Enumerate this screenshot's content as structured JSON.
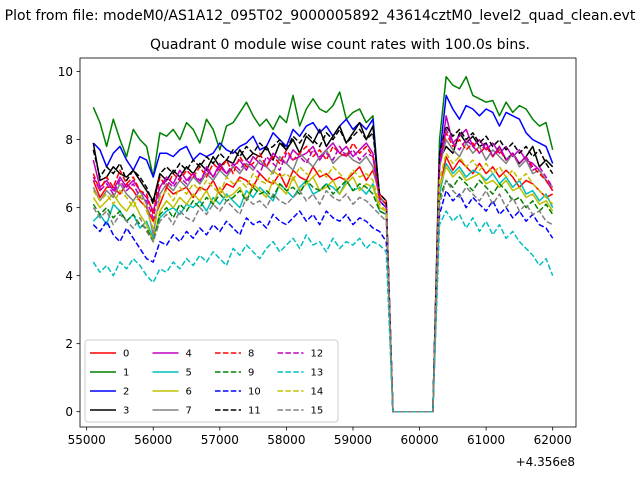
{
  "header": {
    "suptitle": "Plot from file: modeM0/AS1A12_095T02_9000005892_43614cztM0_level2_quad_clean.evt"
  },
  "chart_data": {
    "type": "line",
    "title": "Quadrant 0 module wise count rates with 100.0s bins.",
    "xlabel": "",
    "ylabel": "",
    "x_offset_label": "+4.356e8",
    "xlim": [
      54900,
      62350
    ],
    "ylim": [
      -0.45,
      10.4
    ],
    "xticks": [
      55000,
      56000,
      57000,
      58000,
      59000,
      60000,
      61000,
      62000
    ],
    "yticks": [
      0,
      2,
      4,
      6,
      8,
      10
    ],
    "grid": false,
    "legend": {
      "location": "lower-left",
      "columns": 4
    },
    "x_start": 55100,
    "x_step": 100,
    "series": [
      {
        "name": "0",
        "color": "#ff0000",
        "dash": "solid",
        "values": [
          6.8,
          6.3,
          6.6,
          6.6,
          6.4,
          6.7,
          6.5,
          6.2,
          6.0,
          5.6,
          6.1,
          6.6,
          6.4,
          6.5,
          6.6,
          6.3,
          6.6,
          6.5,
          6.8,
          6.4,
          6.7,
          6.6,
          6.9,
          6.8,
          6.6,
          7.0,
          6.8,
          6.7,
          7.0,
          6.6,
          7.1,
          6.9,
          6.8,
          7.2,
          6.9,
          7.0,
          6.8,
          6.9,
          6.8,
          7.0,
          7.2,
          6.8,
          7.1,
          6.4,
          6.2,
          0,
          0,
          0,
          0,
          0,
          0,
          0,
          6.5,
          7.5,
          7.1,
          7.4,
          7.2,
          7.0,
          7.3,
          7.0,
          7.2,
          6.9,
          7.1,
          6.9,
          6.6,
          6.8,
          6.7,
          6.5,
          6.3,
          6.4
        ]
      },
      {
        "name": "1",
        "color": "#008000",
        "dash": "solid",
        "values": [
          8.95,
          8.5,
          7.8,
          8.6,
          8.0,
          7.5,
          8.3,
          8.0,
          7.8,
          6.9,
          8.2,
          8.1,
          8.3,
          8.0,
          8.5,
          8.3,
          7.9,
          8.6,
          8.3,
          7.7,
          8.4,
          8.5,
          8.8,
          9.1,
          8.7,
          8.4,
          8.6,
          8.3,
          8.7,
          8.5,
          9.3,
          8.4,
          8.9,
          9.2,
          8.9,
          8.8,
          9.0,
          9.4,
          8.6,
          8.8,
          8.9,
          8.5,
          8.7,
          6.2,
          6.0,
          0,
          0,
          0,
          0,
          0,
          0,
          0,
          8.0,
          9.85,
          9.6,
          9.5,
          9.85,
          9.3,
          9.2,
          9.1,
          9.15,
          8.7,
          9.1,
          8.8,
          9.0,
          8.9,
          8.6,
          8.4,
          8.5,
          7.7
        ]
      },
      {
        "name": "2",
        "color": "#0000ff",
        "dash": "solid",
        "values": [
          7.9,
          7.7,
          7.2,
          7.6,
          7.8,
          7.4,
          7.1,
          7.5,
          7.4,
          6.9,
          7.6,
          7.6,
          7.5,
          7.7,
          7.8,
          7.4,
          7.6,
          7.5,
          7.6,
          7.9,
          7.7,
          7.6,
          7.8,
          7.9,
          8.1,
          7.7,
          7.8,
          8.2,
          8.0,
          7.8,
          8.3,
          8.1,
          8.4,
          8.5,
          8.2,
          8.4,
          8.1,
          8.4,
          8.6,
          8.3,
          8.5,
          8.3,
          8.6,
          6.2,
          6.0,
          0,
          0,
          0,
          0,
          0,
          0,
          0,
          7.5,
          9.3,
          8.9,
          8.6,
          9.0,
          8.9,
          8.7,
          8.9,
          8.8,
          8.4,
          8.8,
          8.7,
          8.6,
          8.2,
          8.0,
          7.9,
          7.8,
          7.3
        ]
      },
      {
        "name": "3",
        "color": "#000000",
        "dash": "solid",
        "values": [
          7.9,
          6.8,
          6.9,
          7.2,
          7.0,
          6.9,
          7.1,
          6.8,
          6.5,
          6.2,
          7.0,
          6.8,
          7.1,
          6.9,
          7.2,
          7.0,
          7.3,
          7.1,
          7.5,
          7.2,
          7.4,
          7.3,
          7.7,
          7.4,
          7.6,
          7.5,
          7.8,
          7.4,
          7.9,
          7.7,
          8.0,
          7.6,
          8.1,
          7.9,
          8.3,
          7.8,
          8.1,
          8.4,
          7.9,
          8.2,
          8.5,
          8.0,
          8.4,
          6.3,
          6.1,
          0,
          0,
          0,
          0,
          0,
          0,
          0,
          7.4,
          7.8,
          7.6,
          8.2,
          7.9,
          8.1,
          7.8,
          7.9,
          7.5,
          7.8,
          7.4,
          7.6,
          7.3,
          7.5,
          7.8,
          7.2,
          7.4,
          7.2
        ]
      },
      {
        "name": "4",
        "color": "#bf00bf",
        "dash": "solid",
        "values": [
          7.4,
          6.6,
          6.8,
          6.5,
          6.9,
          6.6,
          6.8,
          6.5,
          6.3,
          5.9,
          6.6,
          6.9,
          6.7,
          7.1,
          6.8,
          7.0,
          6.7,
          7.2,
          6.9,
          7.3,
          7.0,
          7.2,
          7.4,
          7.1,
          7.5,
          7.3,
          7.2,
          7.6,
          7.4,
          7.3,
          7.7,
          7.5,
          7.6,
          7.8,
          7.4,
          7.7,
          7.9,
          7.6,
          7.8,
          7.5,
          7.7,
          7.9,
          7.6,
          6.3,
          6.1,
          0,
          0,
          0,
          0,
          0,
          0,
          0,
          7.2,
          8.7,
          7.9,
          8.1,
          8.3,
          7.8,
          8.0,
          7.7,
          7.9,
          7.6,
          7.8,
          7.5,
          7.7,
          7.4,
          7.3,
          7.1,
          6.8,
          6.5
        ]
      },
      {
        "name": "5",
        "color": "#00bfbf",
        "dash": "solid",
        "values": [
          5.6,
          5.8,
          5.5,
          6.1,
          5.9,
          5.6,
          5.8,
          5.4,
          5.6,
          5.1,
          5.7,
          5.9,
          6.0,
          5.8,
          6.1,
          6.0,
          6.2,
          5.9,
          6.3,
          6.1,
          6.4,
          6.2,
          6.0,
          6.5,
          6.3,
          6.6,
          6.4,
          6.2,
          6.7,
          6.5,
          6.3,
          6.6,
          6.8,
          6.4,
          6.5,
          6.7,
          6.6,
          6.4,
          6.8,
          6.5,
          6.6,
          6.4,
          6.7,
          5.9,
          5.8,
          0,
          0,
          0,
          0,
          0,
          0,
          0,
          6.4,
          7.3,
          7.0,
          7.2,
          6.9,
          7.1,
          7.0,
          6.8,
          7.0,
          6.7,
          6.9,
          6.6,
          6.8,
          6.4,
          6.5,
          6.2,
          6.4,
          6.0
        ]
      },
      {
        "name": "6",
        "color": "#bfbf00",
        "dash": "solid",
        "values": [
          6.3,
          6.0,
          6.2,
          6.4,
          6.1,
          5.9,
          6.2,
          5.8,
          5.5,
          5.0,
          5.9,
          6.2,
          6.0,
          6.3,
          6.1,
          6.4,
          6.2,
          6.5,
          6.1,
          6.6,
          6.3,
          6.4,
          6.6,
          6.2,
          6.7,
          6.5,
          6.3,
          6.8,
          6.6,
          6.4,
          6.9,
          6.5,
          6.7,
          6.9,
          6.5,
          6.6,
          6.8,
          6.4,
          6.7,
          6.9,
          6.5,
          6.7,
          6.6,
          6.0,
          5.9,
          0,
          0,
          0,
          0,
          0,
          0,
          0,
          6.6,
          7.2,
          6.9,
          7.1,
          6.8,
          6.9,
          7.0,
          6.7,
          6.8,
          6.6,
          6.8,
          6.5,
          6.6,
          6.3,
          6.4,
          6.1,
          6.2,
          5.9
        ]
      },
      {
        "name": "7",
        "color": "#808080",
        "dash": "solid",
        "values": [
          6.6,
          6.2,
          6.5,
          6.3,
          6.7,
          6.4,
          6.2,
          6.5,
          6.1,
          5.2,
          6.4,
          6.7,
          6.5,
          6.8,
          6.6,
          6.9,
          6.7,
          7.0,
          6.8,
          7.1,
          6.9,
          7.2,
          7.0,
          7.3,
          7.1,
          7.4,
          7.2,
          7.0,
          7.5,
          7.3,
          7.1,
          7.6,
          7.4,
          7.2,
          7.5,
          7.7,
          7.3,
          7.5,
          7.6,
          7.4,
          7.3,
          7.5,
          7.2,
          6.3,
          6.1,
          0,
          0,
          0,
          0,
          0,
          0,
          0,
          7.2,
          8.0,
          7.7,
          7.5,
          7.9,
          7.6,
          7.8,
          7.4,
          7.7,
          7.5,
          7.3,
          7.6,
          7.2,
          7.4,
          7.0,
          7.1,
          6.8,
          6.6
        ]
      },
      {
        "name": "8",
        "color": "#ff0000",
        "dash": "dashed",
        "values": [
          7.0,
          6.5,
          6.9,
          6.6,
          7.1,
          6.7,
          6.9,
          6.5,
          6.4,
          5.8,
          6.9,
          6.6,
          7.0,
          6.8,
          7.1,
          6.9,
          7.2,
          6.9,
          7.3,
          7.1,
          7.4,
          7.0,
          7.5,
          7.2,
          7.3,
          7.6,
          7.2,
          7.5,
          7.3,
          7.7,
          7.4,
          7.6,
          7.8,
          7.5,
          7.7,
          7.4,
          7.8,
          7.6,
          7.5,
          7.9,
          7.6,
          7.8,
          7.5,
          6.3,
          6.1,
          0,
          0,
          0,
          0,
          0,
          0,
          0,
          7.3,
          8.2,
          7.8,
          8.0,
          7.7,
          7.9,
          7.6,
          7.8,
          7.5,
          7.7,
          7.4,
          7.6,
          7.3,
          7.5,
          7.2,
          7.0,
          6.8,
          6.5
        ]
      },
      {
        "name": "9",
        "color": "#008000",
        "dash": "dashed",
        "values": [
          6.1,
          5.8,
          6.0,
          5.7,
          5.9,
          5.6,
          5.8,
          5.5,
          5.4,
          5.0,
          5.8,
          6.0,
          5.7,
          6.1,
          5.9,
          6.2,
          6.0,
          6.3,
          6.1,
          6.4,
          6.2,
          6.3,
          6.5,
          6.2,
          6.6,
          6.4,
          6.5,
          6.3,
          6.7,
          6.5,
          6.6,
          6.4,
          6.8,
          6.6,
          6.5,
          6.7,
          6.4,
          6.6,
          6.8,
          6.5,
          6.7,
          6.6,
          6.4,
          5.9,
          5.8,
          0,
          0,
          0,
          0,
          0,
          0,
          0,
          6.3,
          6.8,
          6.6,
          6.9,
          6.7,
          6.5,
          6.8,
          6.6,
          6.4,
          6.7,
          6.5,
          6.2,
          6.3,
          6.0,
          6.2,
          5.9,
          6.1,
          5.8
        ]
      },
      {
        "name": "10",
        "color": "#0000ff",
        "dash": "dashed",
        "values": [
          5.5,
          5.3,
          5.6,
          5.2,
          5.0,
          5.4,
          5.1,
          4.8,
          4.5,
          4.4,
          5.0,
          4.9,
          5.2,
          5.0,
          5.3,
          5.1,
          5.4,
          5.2,
          5.5,
          5.3,
          5.6,
          5.4,
          5.2,
          5.7,
          5.5,
          5.6,
          5.4,
          5.8,
          5.6,
          5.5,
          5.7,
          5.9,
          5.6,
          5.8,
          5.5,
          5.9,
          5.7,
          5.6,
          5.8,
          5.5,
          5.7,
          5.6,
          5.4,
          5.3,
          5.0,
          0,
          0,
          0,
          0,
          0,
          0,
          0,
          5.8,
          6.5,
          6.2,
          6.4,
          6.0,
          6.3,
          6.1,
          5.9,
          6.2,
          5.8,
          6.0,
          5.7,
          5.9,
          5.6,
          5.8,
          5.5,
          5.4,
          5.1
        ]
      },
      {
        "name": "11",
        "color": "#000000",
        "dash": "dashed",
        "values": [
          7.7,
          6.9,
          7.2,
          7.0,
          7.3,
          6.8,
          7.1,
          6.9,
          6.6,
          6.1,
          7.0,
          7.2,
          7.0,
          7.3,
          7.1,
          7.4,
          7.2,
          7.5,
          7.3,
          7.6,
          7.4,
          7.7,
          7.5,
          7.8,
          7.6,
          7.9,
          7.7,
          7.8,
          8.0,
          7.7,
          8.1,
          7.9,
          8.2,
          8.0,
          7.8,
          8.2,
          8.0,
          8.3,
          7.9,
          8.1,
          8.3,
          8.0,
          8.2,
          6.4,
          6.2,
          0,
          0,
          0,
          0,
          0,
          0,
          0,
          7.6,
          8.4,
          8.1,
          8.3,
          8.0,
          8.2,
          7.9,
          8.1,
          7.8,
          8.0,
          7.7,
          7.9,
          7.6,
          7.8,
          7.5,
          7.7,
          7.3,
          7.0
        ]
      },
      {
        "name": "12",
        "color": "#bf00bf",
        "dash": "dashed",
        "values": [
          6.9,
          6.5,
          6.7,
          6.4,
          6.8,
          6.5,
          6.7,
          6.3,
          6.2,
          5.7,
          6.6,
          6.8,
          6.6,
          6.9,
          6.7,
          7.0,
          6.8,
          7.1,
          6.9,
          7.2,
          7.0,
          7.3,
          7.1,
          7.4,
          7.2,
          7.0,
          7.5,
          7.3,
          7.1,
          7.6,
          7.4,
          7.5,
          7.3,
          7.7,
          7.5,
          7.6,
          7.4,
          7.8,
          7.5,
          7.7,
          7.4,
          7.6,
          7.5,
          6.2,
          6.0,
          0,
          0,
          0,
          0,
          0,
          0,
          0,
          7.2,
          8.3,
          7.9,
          7.7,
          8.0,
          7.8,
          7.6,
          7.9,
          7.5,
          7.8,
          7.4,
          7.6,
          7.3,
          7.5,
          7.1,
          7.2,
          6.9,
          6.6
        ]
      },
      {
        "name": "13",
        "color": "#00bfbf",
        "dash": "dashed",
        "values": [
          4.4,
          4.1,
          4.3,
          4.0,
          4.4,
          4.2,
          4.5,
          4.3,
          4.0,
          3.8,
          4.2,
          4.1,
          4.4,
          4.2,
          4.5,
          4.3,
          4.6,
          4.4,
          4.7,
          4.5,
          4.3,
          4.8,
          4.6,
          4.9,
          4.7,
          4.5,
          4.8,
          5.0,
          4.7,
          4.9,
          5.1,
          4.8,
          5.2,
          4.9,
          5.0,
          4.7,
          5.1,
          4.8,
          5.0,
          4.9,
          5.1,
          4.8,
          5.0,
          4.9,
          4.7,
          0,
          0,
          0,
          0,
          0,
          0,
          0,
          5.5,
          5.9,
          5.6,
          5.8,
          5.4,
          5.7,
          5.3,
          5.6,
          5.2,
          5.5,
          5.1,
          5.3,
          5.0,
          4.8,
          4.6,
          4.3,
          4.5,
          4.0
        ]
      },
      {
        "name": "14",
        "color": "#bfbf00",
        "dash": "dashed",
        "values": [
          6.5,
          6.2,
          6.4,
          6.1,
          6.5,
          6.3,
          6.0,
          6.4,
          5.9,
          5.4,
          6.3,
          6.5,
          6.2,
          6.6,
          6.4,
          6.7,
          6.5,
          6.8,
          6.6,
          6.4,
          6.9,
          6.7,
          6.8,
          6.6,
          7.0,
          6.8,
          6.7,
          7.1,
          6.9,
          7.0,
          6.8,
          7.2,
          7.0,
          6.9,
          7.1,
          6.9,
          7.2,
          7.0,
          6.8,
          7.1,
          6.9,
          7.0,
          6.8,
          6.1,
          5.9,
          0,
          0,
          0,
          0,
          0,
          0,
          0,
          6.8,
          7.6,
          7.3,
          7.5,
          7.2,
          7.4,
          7.1,
          7.3,
          7.0,
          7.2,
          6.9,
          7.1,
          6.8,
          7.0,
          6.7,
          6.5,
          6.3,
          6.1
        ]
      },
      {
        "name": "15",
        "color": "#808080",
        "dash": "dashed",
        "values": [
          6.0,
          5.7,
          5.9,
          5.5,
          5.8,
          5.6,
          5.4,
          5.7,
          5.3,
          5.0,
          5.6,
          5.8,
          5.5,
          5.9,
          5.7,
          5.6,
          6.0,
          5.8,
          6.1,
          5.9,
          6.2,
          6.0,
          5.8,
          6.3,
          6.1,
          6.2,
          6.0,
          6.4,
          6.2,
          6.1,
          6.3,
          6.5,
          6.2,
          6.4,
          6.1,
          6.5,
          6.3,
          6.2,
          6.4,
          6.1,
          6.3,
          6.2,
          6.0,
          5.8,
          5.6,
          0,
          0,
          0,
          0,
          0,
          0,
          0,
          6.1,
          6.8,
          6.5,
          6.3,
          6.6,
          6.4,
          6.2,
          6.5,
          6.1,
          6.4,
          6.0,
          6.3,
          5.9,
          6.1,
          5.8,
          5.9,
          5.6,
          5.5
        ]
      }
    ]
  }
}
